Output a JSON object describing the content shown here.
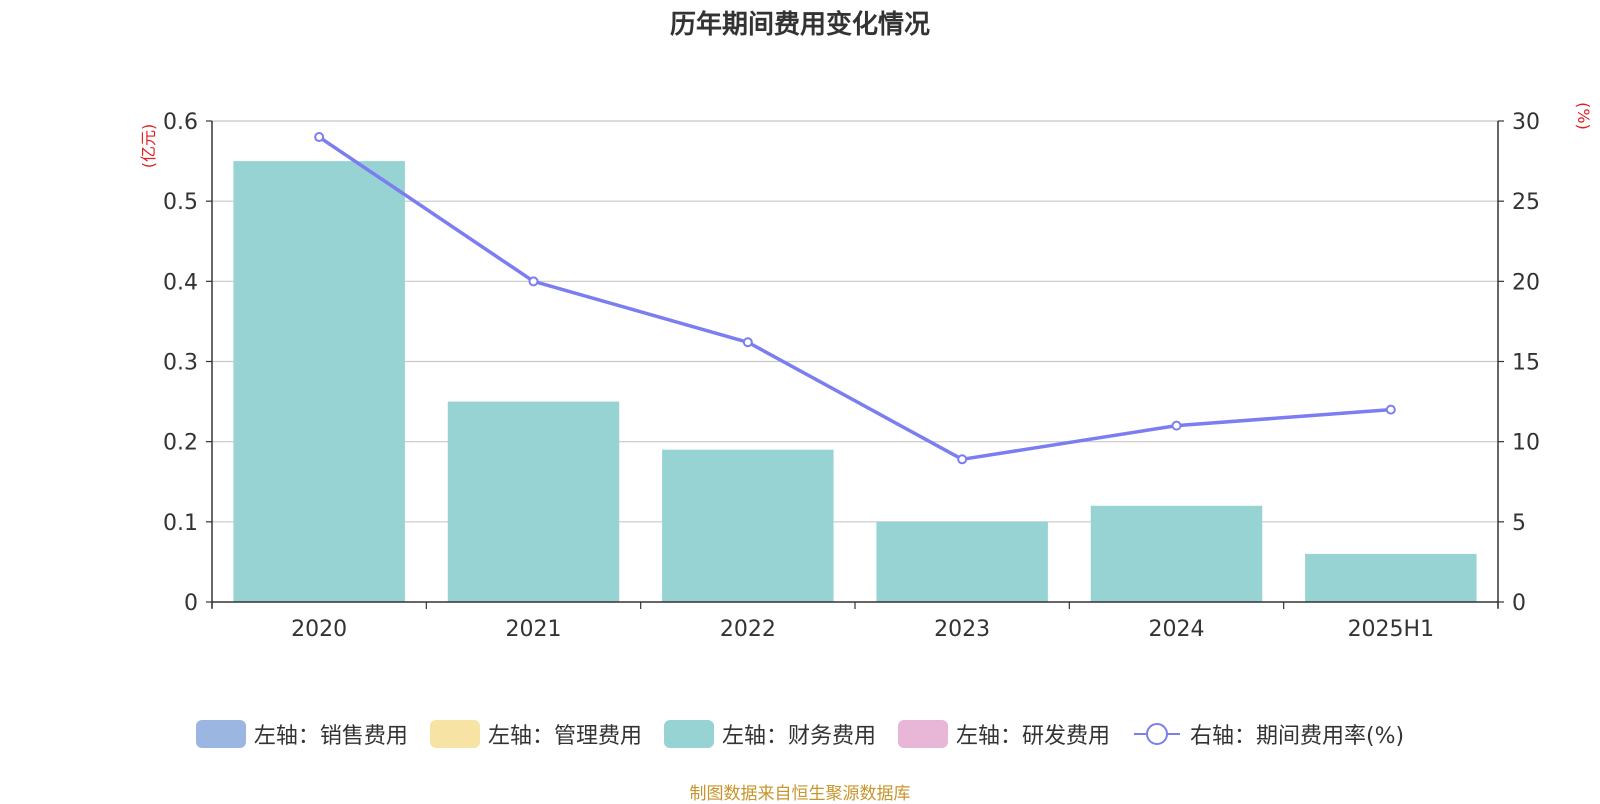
{
  "title": "历年期间费用变化情况",
  "left_unit": "(亿元)",
  "right_unit": "(%)",
  "source": "制图数据来自恒生聚源数据库",
  "colors": {
    "sales": "#9bb6e0",
    "admin": "#f7e4a5",
    "finance": "#98d3d4",
    "rnd": "#e8b7d8",
    "rate": "#7b7ef0",
    "grid": "#c8c8c8",
    "axis": "#333333",
    "unit": "#e02020"
  },
  "legend": [
    {
      "label": "左轴：销售费用",
      "color": "#9bb6e0",
      "kind": "bar"
    },
    {
      "label": "左轴：管理费用",
      "color": "#f7e4a5",
      "kind": "bar"
    },
    {
      "label": "左轴：财务费用",
      "color": "#98d3d4",
      "kind": "bar"
    },
    {
      "label": "左轴：研发费用",
      "color": "#e8b7d8",
      "kind": "bar"
    },
    {
      "label": "右轴：期间费用率(%)",
      "color": "#7b7ef0",
      "kind": "line"
    }
  ],
  "chart_data": {
    "type": "bar",
    "categories": [
      "2020",
      "2021",
      "2022",
      "2023",
      "2024",
      "2025H1"
    ],
    "series": [
      {
        "name": "左轴：财务费用",
        "axis": "left",
        "type": "bar",
        "values": [
          0.55,
          0.25,
          0.19,
          0.1,
          0.12,
          0.06
        ]
      },
      {
        "name": "右轴：期间费用率(%)",
        "axis": "right",
        "type": "line",
        "values": [
          29.0,
          20.0,
          16.2,
          8.9,
          11.0,
          12.0
        ]
      }
    ],
    "y_left": {
      "min": 0,
      "max": 0.6,
      "ticks": [
        "0",
        "0.1",
        "0.2",
        "0.3",
        "0.4",
        "0.5",
        "0.6"
      ]
    },
    "y_right": {
      "min": 0,
      "max": 30,
      "ticks": [
        "0",
        "5",
        "10",
        "15",
        "20",
        "25",
        "30"
      ]
    },
    "grid": true,
    "legend_position": "bottom"
  }
}
